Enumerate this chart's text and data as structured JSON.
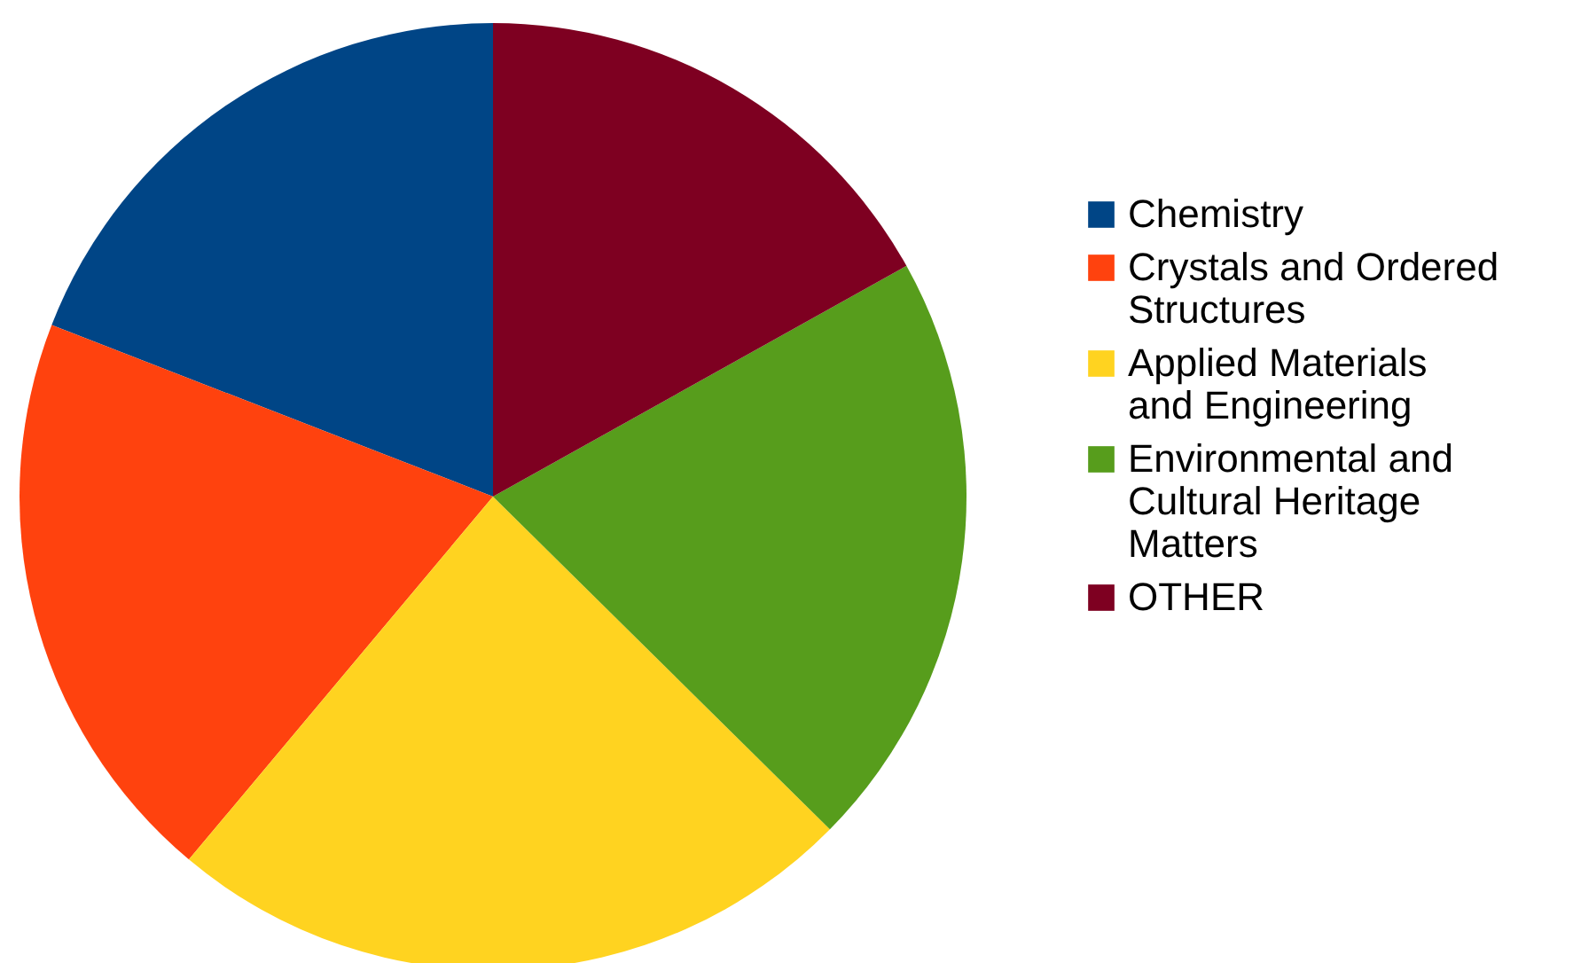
{
  "chart_data": {
    "type": "pie",
    "categories": [
      "Chemistry",
      "Crystals and Ordered Structures",
      "Applied Materials and Engineering",
      "Environmental and Cultural Heritage Matters",
      "OTHER"
    ],
    "values": [
      19.1,
      19.8,
      23.7,
      20.5,
      16.9
    ],
    "colors": [
      "#004586",
      "#ff420e",
      "#ffd320",
      "#579d1c",
      "#7e0021"
    ],
    "legend": "right"
  }
}
